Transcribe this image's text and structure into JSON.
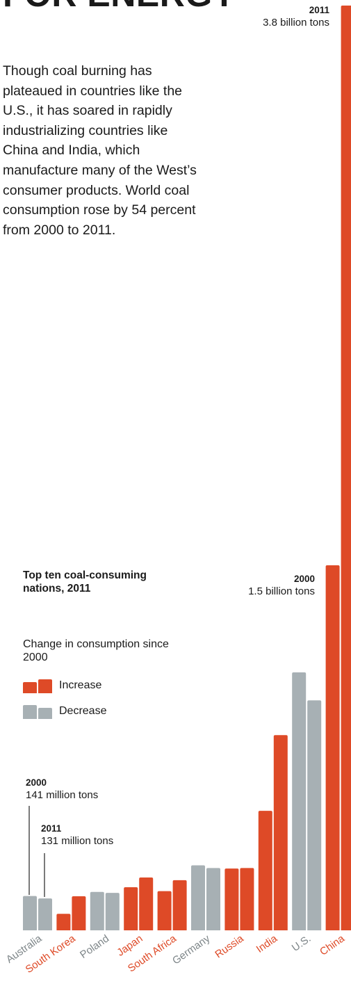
{
  "headline": "FOR ENERGY",
  "dek": "Though coal burning has plateaued in countries like the U.S., it has soared in rapidly industrializing countries like China and India, which manufacture many of the West’s consumer products. World coal consumption rose by 54 percent from 2000 to 2011.",
  "legend": {
    "title": "Top ten coal-consuming nations, 2011",
    "subtitle": "Change in consumption since 2000",
    "increase_label": "Increase",
    "decrease_label": "Decrease",
    "increase_color": "#de4a27",
    "decrease_color": "#a7b0b4"
  },
  "annotations": {
    "china_2011_year": "2011",
    "china_2011_value": "3.8 billion tons",
    "china_2000_year": "2000",
    "china_2000_value": "1.5 billion tons",
    "australia_2000_year": "2000",
    "australia_2000_value": "141 million tons",
    "australia_2011_year": "2011",
    "australia_2011_value": "131 million tons"
  },
  "chart_data": {
    "type": "bar",
    "units": "million tons",
    "categories": [
      "Australia",
      "South Korea",
      "Poland",
      "Japan",
      "South Africa",
      "Germany",
      "Russia",
      "India",
      "U.S.",
      "China"
    ],
    "series": [
      {
        "name": "2000",
        "values": [
          141,
          68,
          158,
          177,
          161,
          267,
          254,
          491,
          1060,
          1500
        ]
      },
      {
        "name": "2011",
        "values": [
          131,
          140,
          154,
          217,
          206,
          256,
          256,
          802,
          945,
          3800
        ]
      }
    ],
    "change": [
      "decrease",
      "increase",
      "decrease",
      "increase",
      "increase",
      "decrease",
      "increase",
      "increase",
      "decrease",
      "increase"
    ],
    "ylim": [
      0,
      3800
    ]
  }
}
